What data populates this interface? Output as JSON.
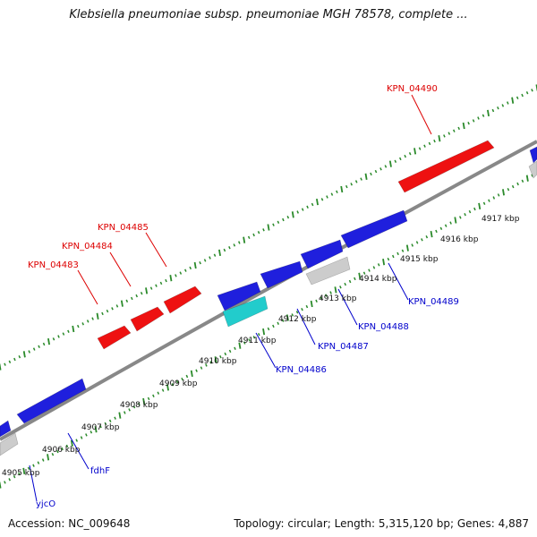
{
  "header": {
    "title": "Klebsiella pneumoniae subsp. pneumoniae MGH 78578, complete ..."
  },
  "footer": {
    "accession": "Accession: NC_009648",
    "summary": "Topology: circular; Length: 5,315,120 bp; Genes: 4,887"
  },
  "colors": {
    "backbone": "#888888",
    "tick": "#2a8a2a",
    "forward_gene": "#ee1111",
    "reverse_gene": "#1f1fdd",
    "cyan_gene": "#22cccc",
    "gray_gene": "#cccccc",
    "label_red": "#dd0000",
    "label_blue": "#0000cc"
  },
  "scale_labels": [
    "4905 kbp",
    "4906 kbp",
    "4907 kbp",
    "4908 kbp",
    "4909 kbp",
    "4910 kbp",
    "4911 kbp",
    "4912 kbp",
    "4913 kbp",
    "4914 kbp",
    "4915 kbp",
    "4916 kbp",
    "4917 kbp"
  ],
  "gene_labels": {
    "forward": [
      "KPN_04490",
      "KPN_04485",
      "KPN_04484",
      "KPN_04483"
    ],
    "reverse": [
      "KPN_04489",
      "KPN_04488",
      "KPN_04487",
      "KPN_04486",
      "fdhF",
      "yjcO"
    ]
  }
}
